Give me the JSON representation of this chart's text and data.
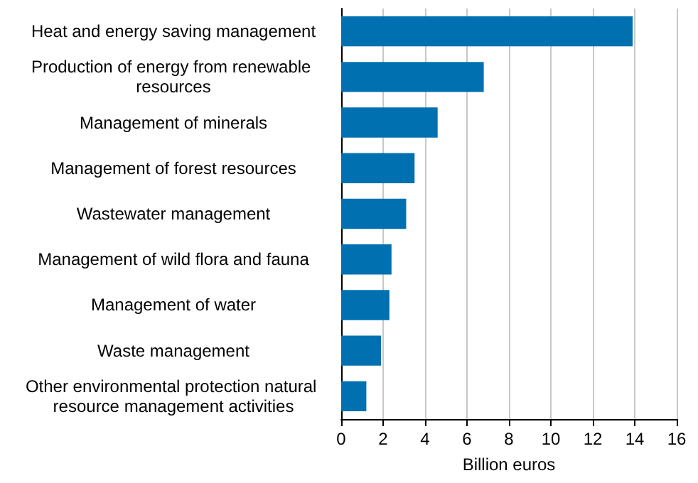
{
  "chart_data": {
    "type": "bar",
    "orientation": "horizontal",
    "xlabel": "Billion euros",
    "categories": [
      "Heat and energy saving management",
      "Production of energy from renewable resources",
      "Management of minerals",
      "Management of forest resources",
      "Wastewater management",
      "Management of wild flora and fauna",
      "Management of water",
      "Waste management",
      "Other environmental protection natural resource management activities"
    ],
    "values": [
      13.9,
      6.8,
      4.6,
      3.5,
      3.1,
      2.4,
      2.3,
      1.9,
      1.2
    ],
    "color": "#0070b0",
    "xlim": [
      0,
      16
    ],
    "xticks": [
      0,
      2,
      4,
      6,
      8,
      10,
      12,
      14,
      16
    ],
    "grid": "x"
  }
}
